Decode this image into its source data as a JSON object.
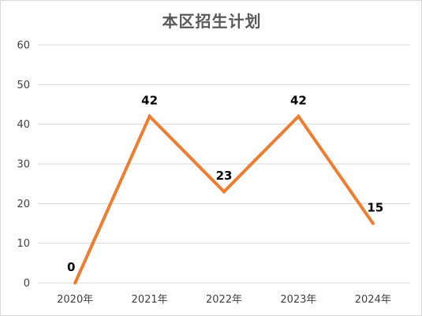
{
  "chart_data": {
    "type": "line",
    "title": "本区招生计划",
    "categories": [
      "2020年",
      "2021年",
      "2022年",
      "2023年",
      "2024年"
    ],
    "series": [
      {
        "values": [
          0,
          42,
          23,
          42,
          15
        ]
      }
    ],
    "data_labels": [
      "0",
      "42",
      "23",
      "42",
      "15"
    ],
    "ylim": [
      0,
      60
    ],
    "yticks": [
      "0",
      "10",
      "20",
      "30",
      "40",
      "50",
      "60"
    ],
    "grid": true,
    "legend": "none",
    "line_color": "#ED7D31",
    "grid_color": "#D9D9D9"
  }
}
